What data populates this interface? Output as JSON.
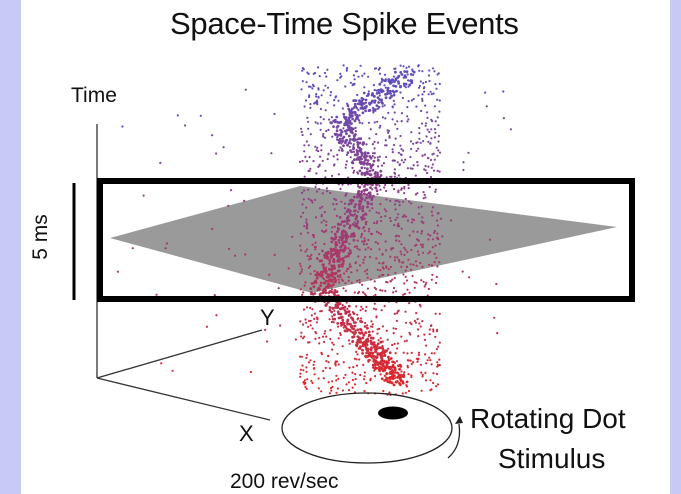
{
  "figure": {
    "title": "Space-Time Spike Events",
    "axis_time": "Time",
    "axis_x": "X",
    "axis_y": "Y",
    "scale_bar": "5 ms",
    "stimulus_line1": "Rotating Dot",
    "stimulus_line2": "Stimulus",
    "rotation_rate": "200 rev/sec"
  },
  "colors": {
    "background": "#c9c9f6",
    "early_spikes": "#5b4fc0",
    "late_spikes": "#e02828",
    "time_plane": "#9a9a9a",
    "window_frame": "#000000"
  }
}
